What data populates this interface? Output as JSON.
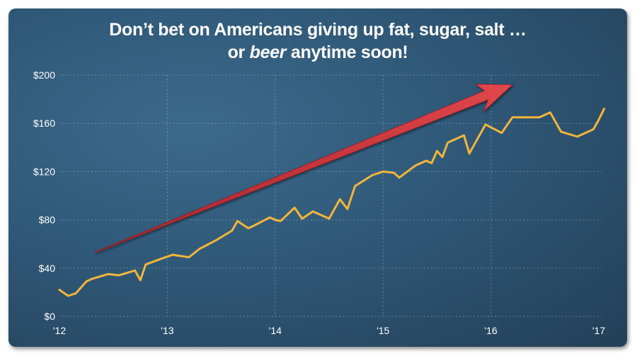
{
  "chart_data": {
    "type": "line",
    "title_line1": "Don’t bet on Americans giving up fat, sugar, salt …",
    "title_line2_pre": "or ",
    "title_line2_em": "beer",
    "title_line2_post": " anytime soon!",
    "xlabel": "",
    "ylabel": "",
    "ylim": [
      0,
      200
    ],
    "xlim": [
      2012,
      2017
    ],
    "y_ticks": [
      0,
      40,
      80,
      120,
      160,
      200
    ],
    "y_tick_labels": [
      "$0",
      "$40",
      "$80",
      "$120",
      "$160",
      "$200"
    ],
    "x_ticks": [
      2012,
      2013,
      2014,
      2015,
      2016,
      2017
    ],
    "x_tick_labels": [
      "'12",
      "'13",
      "'14",
      "'15",
      "'16",
      "'17"
    ],
    "grid": true,
    "line_color": "#f2b53a",
    "arrow_color": "#c8373d",
    "arrow": {
      "from": [
        2012.33,
        53
      ],
      "to": [
        2016.2,
        192
      ]
    },
    "series": [
      {
        "x": [
          2012.0,
          2012.08,
          2012.15,
          2012.25,
          2012.3,
          2012.45,
          2012.55,
          2012.7,
          2012.75,
          2012.8,
          2012.95,
          2013.05,
          2013.2,
          2013.3,
          2013.45,
          2013.6,
          2013.65,
          2013.75,
          2013.8,
          2013.95,
          2014.0,
          2014.05,
          2014.18,
          2014.25,
          2014.35,
          2014.45,
          2014.5,
          2014.6,
          2014.67,
          2014.74,
          2014.9,
          2015.0,
          2015.1,
          2015.15,
          2015.3,
          2015.4,
          2015.45,
          2015.5,
          2015.55,
          2015.6,
          2015.75,
          2015.8,
          2015.95,
          2016.1,
          2016.2,
          2016.3,
          2016.45,
          2016.55,
          2016.65,
          2016.8,
          2016.95,
          2017.0,
          2017.05
        ],
        "values": [
          22,
          17,
          19,
          29,
          31,
          35,
          34,
          38,
          30,
          43,
          48,
          51,
          49,
          56,
          63,
          71,
          79,
          73,
          75,
          82,
          80,
          79,
          90,
          81,
          87,
          83,
          81,
          97,
          89,
          108,
          117,
          120,
          119,
          115,
          125,
          129,
          127,
          137,
          132,
          144,
          150,
          135,
          159,
          152,
          165,
          165,
          165,
          169,
          153,
          149,
          155,
          163,
          172
        ]
      }
    ]
  }
}
